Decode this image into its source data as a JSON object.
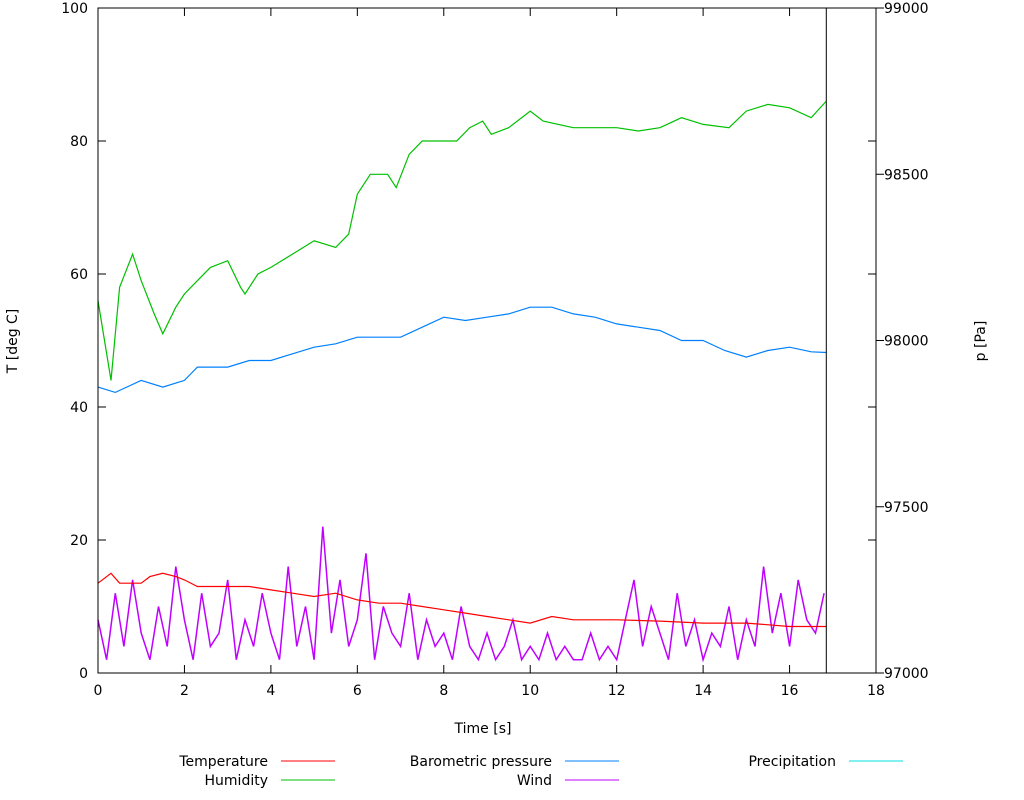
{
  "chart_data": {
    "type": "line",
    "xlabel": "Time [s]",
    "ylabel": "T [deg C]",
    "y2label": "p [Pa]",
    "xlim": [
      0,
      18
    ],
    "ylim": [
      0,
      100
    ],
    "y2lim": [
      97000,
      99000
    ],
    "xticks": [
      "0",
      "2",
      "4",
      "6",
      "8",
      "10",
      "12",
      "14",
      "16",
      "18"
    ],
    "yticks": [
      "0",
      "20",
      "40",
      "60",
      "80",
      "100"
    ],
    "y2ticks": [
      "97000",
      "97500",
      "98000",
      "98500",
      "99000"
    ],
    "grid": false,
    "legend_position": "bottom",
    "series": [
      {
        "name": "Temperature",
        "color": "#ff0000",
        "axis": "y",
        "x": [
          0,
          0.3,
          0.5,
          1.0,
          1.2,
          1.5,
          1.8,
          2.0,
          2.3,
          2.8,
          3.0,
          3.5,
          4.0,
          4.5,
          5.0,
          5.5,
          6.0,
          6.5,
          7.0,
          7.5,
          8.0,
          8.5,
          9.0,
          9.5,
          10.0,
          10.5,
          11.0,
          12.0,
          13.0,
          14.0,
          15.0,
          16.0,
          16.85
        ],
        "y": [
          13.5,
          15,
          13.5,
          13.5,
          14.5,
          15,
          14.5,
          14,
          13,
          13,
          13,
          13,
          12.5,
          12,
          11.5,
          12,
          11,
          10.5,
          10.5,
          10,
          9.5,
          9,
          8.5,
          8,
          7.5,
          8.5,
          8,
          8,
          7.8,
          7.5,
          7.5,
          7,
          7
        ]
      },
      {
        "name": "Humidity",
        "color": "#00c000",
        "axis": "y",
        "x": [
          0,
          0.3,
          0.5,
          0.8,
          1.0,
          1.3,
          1.5,
          1.8,
          2.0,
          2.3,
          2.6,
          3.0,
          3.3,
          3.4,
          3.7,
          4.0,
          4.5,
          5.0,
          5.5,
          5.8,
          6.0,
          6.3,
          6.7,
          6.9,
          7.2,
          7.5,
          8.0,
          8.3,
          8.6,
          8.9,
          9.1,
          9.5,
          10.0,
          10.3,
          11.0,
          12.0,
          12.5,
          13.0,
          13.5,
          14.0,
          14.6,
          15.0,
          15.5,
          16.0,
          16.5,
          16.85
        ],
        "y": [
          56,
          44,
          58,
          63,
          59,
          54,
          51,
          55,
          57,
          59,
          61,
          62,
          58,
          57,
          60,
          61,
          63,
          65,
          64,
          66,
          72,
          75,
          75,
          73,
          78,
          80,
          80,
          80,
          82,
          83,
          81,
          82,
          84.5,
          83,
          82,
          82,
          81.5,
          82,
          83.5,
          82.5,
          82,
          84.5,
          85.5,
          85,
          83.5,
          86
        ]
      },
      {
        "name": "Barometric pressure",
        "color": "#0080ff",
        "axis": "y2",
        "x": [
          0,
          0.4,
          1.0,
          1.5,
          2.0,
          2.3,
          3.0,
          3.5,
          4.0,
          4.5,
          5.0,
          5.5,
          6.0,
          6.5,
          7.0,
          7.5,
          8.0,
          8.5,
          9.0,
          9.5,
          10.0,
          10.5,
          11.0,
          11.5,
          12.0,
          12.5,
          13.0,
          13.5,
          14.0,
          14.5,
          15.0,
          15.5,
          16.0,
          16.5,
          16.85
        ],
        "y": [
          97860,
          97844,
          97880,
          97860,
          97880,
          97920,
          97920,
          97940,
          97940,
          97960,
          97980,
          97990,
          98010,
          98010,
          98010,
          98040,
          98070,
          98060,
          98070,
          98080,
          98100,
          98100,
          98080,
          98070,
          98050,
          98040,
          98030,
          98000,
          98000,
          97970,
          97950,
          97970,
          97980,
          97966,
          97964
        ]
      },
      {
        "name": "Wind",
        "color": "#c000ff",
        "axis": "y",
        "x0": 0,
        "dx": 0.2,
        "y": [
          8,
          2,
          12,
          4,
          14,
          6,
          2,
          10,
          4,
          16,
          8,
          2,
          12,
          4,
          6,
          14,
          2,
          8,
          4,
          12,
          6,
          2,
          16,
          4,
          10,
          2,
          22,
          6,
          14,
          4,
          8,
          18,
          2,
          10,
          6,
          4,
          12,
          2,
          8,
          4,
          6,
          2,
          10,
          4,
          2,
          6,
          2,
          4,
          8,
          2,
          4,
          2,
          6,
          2,
          4,
          2,
          2,
          6,
          2,
          4,
          2,
          8,
          14,
          4,
          10,
          6,
          2,
          12,
          4,
          8,
          2,
          6,
          4,
          10,
          2,
          8,
          4,
          16,
          6,
          12,
          4,
          14,
          8,
          6,
          12
        ]
      },
      {
        "name": "Precipitation",
        "color": "#00e0e0",
        "axis": "y",
        "x": [],
        "y": []
      }
    ]
  }
}
